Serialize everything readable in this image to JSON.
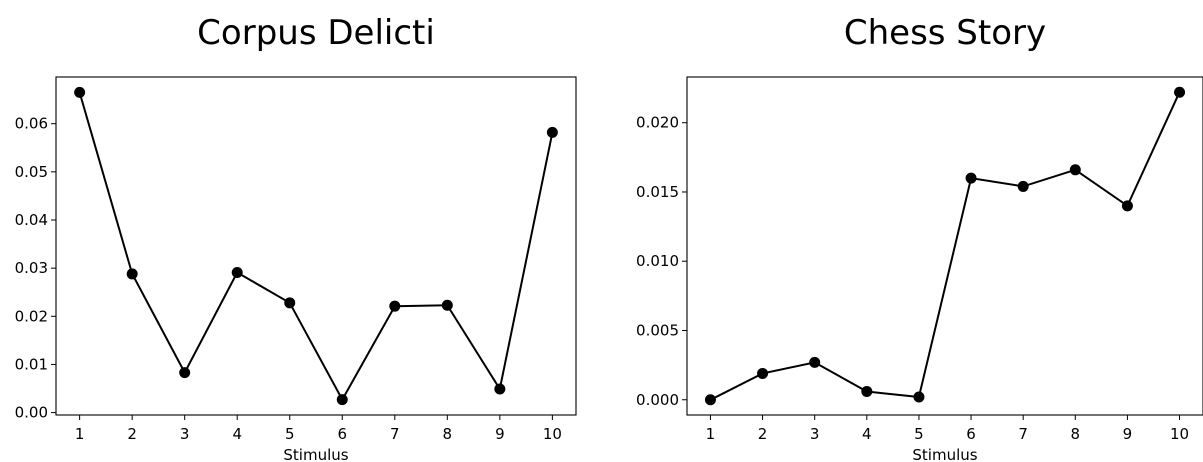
{
  "chart_data": [
    {
      "type": "line",
      "title": "Corpus Delicti",
      "xlabel": "Stimulus",
      "ylabel": "",
      "x": [
        1,
        2,
        3,
        4,
        5,
        6,
        7,
        8,
        9,
        10
      ],
      "values": [
        0.0665,
        0.0288,
        0.0083,
        0.0291,
        0.0228,
        0.0027,
        0.0221,
        0.0223,
        0.0049,
        0.0582
      ],
      "xticks": [
        "1",
        "2",
        "3",
        "4",
        "5",
        "6",
        "7",
        "8",
        "9",
        "10"
      ],
      "yticks": [
        "0.00",
        "0.01",
        "0.02",
        "0.03",
        "0.04",
        "0.05",
        "0.06"
      ],
      "ylim": [
        -0.0005,
        0.0697
      ],
      "xlim": [
        0.55,
        10.45
      ],
      "grid": false,
      "marker": "circle",
      "color": "#000000"
    },
    {
      "type": "line",
      "title": "Chess Story",
      "xlabel": "Stimulus",
      "ylabel": "",
      "x": [
        1,
        2,
        3,
        4,
        5,
        6,
        7,
        8,
        9,
        10
      ],
      "values": [
        0.0,
        0.0019,
        0.0027,
        0.0006,
        0.0002,
        0.016,
        0.0154,
        0.0166,
        0.014,
        0.0222
      ],
      "xticks": [
        "1",
        "2",
        "3",
        "4",
        "5",
        "6",
        "7",
        "8",
        "9",
        "10"
      ],
      "yticks": [
        "0.000",
        "0.005",
        "0.010",
        "0.015",
        "0.020"
      ],
      "ylim": [
        -0.0011,
        0.0233
      ],
      "xlim": [
        0.55,
        10.45
      ],
      "grid": false,
      "marker": "circle",
      "color": "#000000"
    }
  ]
}
